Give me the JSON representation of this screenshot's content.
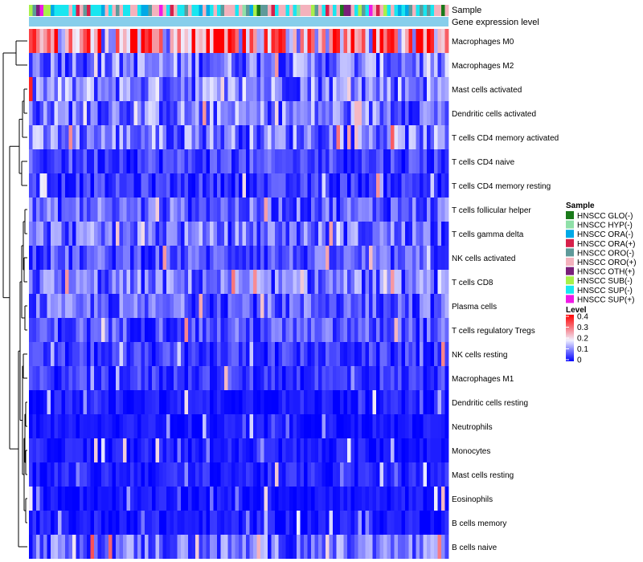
{
  "chart_data": {
    "type": "heatmap",
    "title": "",
    "annotation_rows": [
      "Sample",
      "Gene expression level"
    ],
    "rows": [
      "Macrophages M0",
      "Macrophages M2",
      "Mast cells activated",
      "Dendritic cells activated",
      "T cells CD4 memory activated",
      "T cells CD4 naive",
      "T cells CD4 memory resting",
      "T cells follicular helper",
      "T cells gamma delta",
      "NK cells activated",
      "T cells CD8",
      "Plasma cells",
      "T cells regulatory  Tregs",
      "NK cells resting",
      "Macrophages M1",
      "Dendritic cells resting",
      "Neutrophils",
      "Monocytes",
      "Mast cells resting",
      "Eosinophils",
      "B cells memory",
      "B cells naive"
    ],
    "approx_mean_level": [
      0.25,
      0.09,
      0.1,
      0.09,
      0.09,
      0.05,
      0.04,
      0.07,
      0.08,
      0.06,
      0.08,
      0.07,
      0.06,
      0.04,
      0.04,
      0.02,
      0.015,
      0.02,
      0.025,
      0.015,
      0.02,
      0.08
    ],
    "n_samples": 116,
    "sample_legend": {
      "title": "Sample",
      "items": [
        {
          "label": "HNSCC GLO(-)",
          "color": "#1a7a1a"
        },
        {
          "label": "HNSCC HYP(-)",
          "color": "#8fe0a8"
        },
        {
          "label": "HNSCC ORA(-)",
          "color": "#00a9e6"
        },
        {
          "label": "HNSCC ORA(+)",
          "color": "#d6204a"
        },
        {
          "label": "HNSCC ORO(-)",
          "color": "#5e9a9a"
        },
        {
          "label": "HNSCC ORO(+)",
          "color": "#f4b2bd"
        },
        {
          "label": "HNSCC OTH(+)",
          "color": "#7a1f7a"
        },
        {
          "label": "HNSCC SUB(-)",
          "color": "#a8f04a"
        },
        {
          "label": "HNSCC SUP(-)",
          "color": "#18e6f0"
        },
        {
          "label": "HNSCC SUP(+)",
          "color": "#f019e6"
        }
      ]
    },
    "level_legend": {
      "title": "Level",
      "ticks": [
        "0.4",
        "0.3",
        "0.2",
        "0.1",
        "0"
      ],
      "tick_values": [
        0.4,
        0.3,
        0.2,
        0.1,
        0
      ],
      "range": [
        0,
        0.4
      ],
      "low_color": "#0000ff",
      "mid_color": "#f0f0ff",
      "high_color": "#ff0000"
    },
    "gene_expression_bar_color": "#87ceeb",
    "dendrogram_side": "left"
  }
}
